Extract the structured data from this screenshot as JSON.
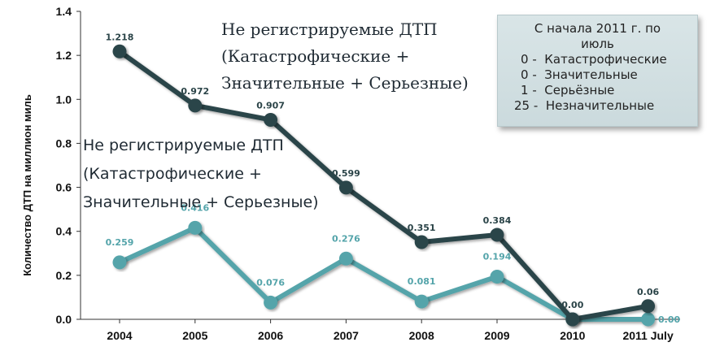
{
  "chart_data": {
    "type": "line",
    "categories": [
      "2004",
      "2005",
      "2006",
      "2007",
      "2008",
      "2009",
      "2010",
      "2011 July"
    ],
    "series": [
      {
        "values": [
          1.218,
          0.972,
          0.907,
          0.599,
          0.351,
          0.384,
          0.0,
          0.06
        ],
        "labels": [
          "1.218",
          "0.972",
          "0.907",
          "0.599",
          "0.351",
          "0.384",
          "0.00",
          "0.06"
        ],
        "color": "#2b4448"
      },
      {
        "values": [
          0.259,
          0.416,
          0.076,
          0.276,
          0.081,
          0.194,
          0.0,
          0.0
        ],
        "labels": [
          "0.259",
          "0.416",
          "0.076",
          "0.276",
          "0.081",
          "0.194",
          "",
          "0.00"
        ],
        "color": "#54a4aa"
      }
    ],
    "ylabel": "Количество ДТП на миллион миль",
    "ylim": [
      0,
      1.4
    ],
    "yticks": [
      "0.0",
      "0.2",
      "0.4",
      "0.6",
      "0.8",
      "1.0",
      "1.2",
      "1.4"
    ],
    "grid": false,
    "annotations": {
      "upper": {
        "line1": "Не регистрируемые ДТП",
        "line2": "(Катастрофические +",
        "line3": "Значительные + Серьезные)"
      },
      "lower": {
        "line1": "Не регистрируемые ДТП",
        "line2": "(Катастрофические +",
        "line3": "Значительные + Серьезные)"
      },
      "box": {
        "header1": "С начала 2011 г. по",
        "header2": "июль",
        "rows": [
          {
            "count": "0",
            "label": "Катастрофические"
          },
          {
            "count": "0",
            "label": "Значительные"
          },
          {
            "count": "1",
            "label": "Серьёзные"
          },
          {
            "count": "25",
            "label": "Незначительные"
          }
        ]
      }
    }
  }
}
